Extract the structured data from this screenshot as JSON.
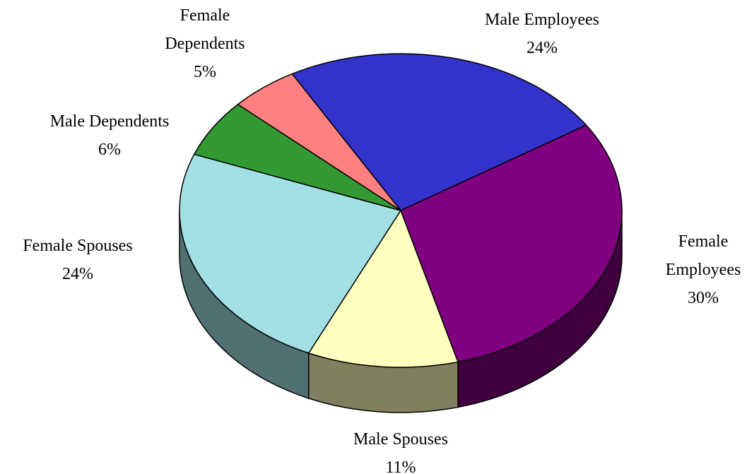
{
  "chart_data": {
    "type": "pie",
    "categories": [
      "Male Employees",
      "Female Employees",
      "Male Spouses",
      "Female Spouses",
      "Male Dependents",
      "Female Dependents"
    ],
    "values": [
      24,
      30,
      11,
      24,
      6,
      5
    ],
    "value_labels": [
      "24%",
      "30%",
      "11%",
      "24%",
      "6%",
      "5%"
    ],
    "colors": [
      "#3333cc",
      "#800080",
      "#ffffc0",
      "#a2e0e3",
      "#339933",
      "#ff8080"
    ]
  }
}
